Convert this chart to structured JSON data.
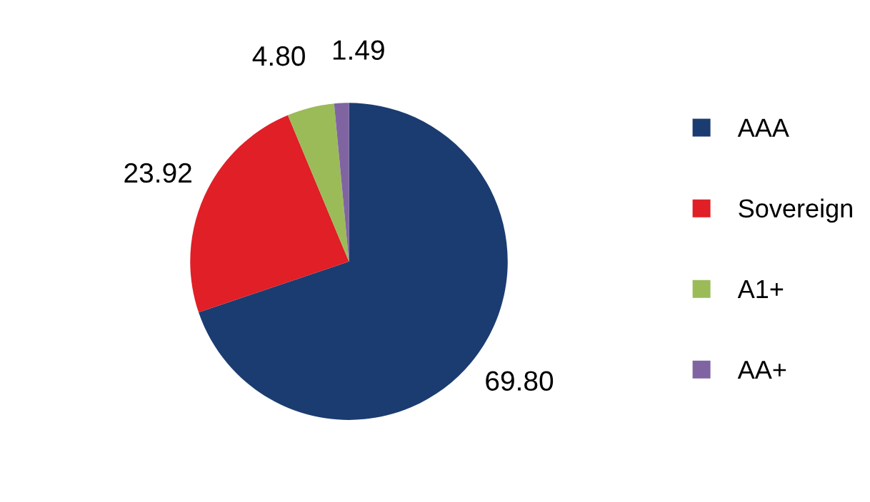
{
  "chart_data": {
    "type": "pie",
    "categories": [
      "AAA",
      "Sovereign",
      "A1+",
      "AA+"
    ],
    "values": [
      69.8,
      23.92,
      4.8,
      1.49
    ],
    "value_labels": [
      "69.80",
      "23.92",
      "4.80",
      "1.49"
    ],
    "colors": [
      "#1b3c70",
      "#e01f26",
      "#9bbb59",
      "#8064a2"
    ],
    "legend": "right"
  }
}
